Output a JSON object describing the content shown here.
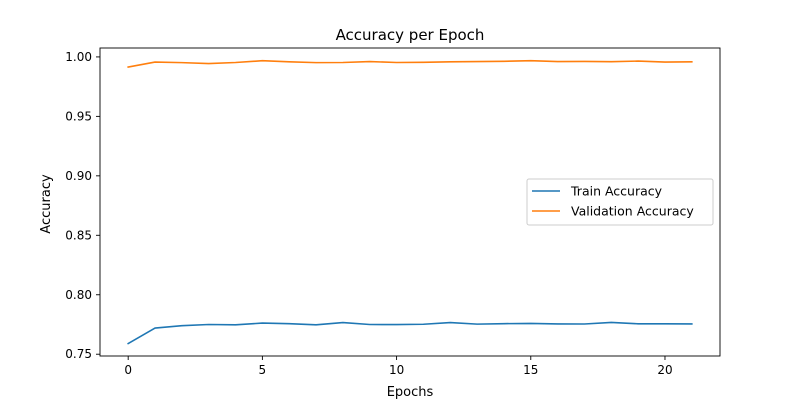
{
  "chart_data": {
    "type": "line",
    "title": "Accuracy per Epoch",
    "xlabel": "Epochs",
    "ylabel": "Accuracy",
    "xlim": [
      -1.05,
      22.05
    ],
    "ylim": [
      0.7485,
      1.0075
    ],
    "xticks": [
      0,
      5,
      10,
      15,
      20
    ],
    "xtick_labels": [
      "0",
      "5",
      "10",
      "15",
      "20"
    ],
    "yticks": [
      0.75,
      0.8,
      0.85,
      0.9,
      0.95,
      1.0
    ],
    "ytick_labels": [
      "0.75",
      "0.80",
      "0.85",
      "0.90",
      "0.95",
      "1.00"
    ],
    "grid": false,
    "legend_position": "center-right",
    "x": [
      0,
      1,
      2,
      3,
      4,
      5,
      6,
      7,
      8,
      9,
      10,
      11,
      12,
      13,
      14,
      15,
      16,
      17,
      18,
      19,
      20,
      21
    ],
    "series": [
      {
        "name": "Train Accuracy",
        "color": "#1f77b4",
        "values": [
          0.759,
          0.772,
          0.774,
          0.775,
          0.7747,
          0.7762,
          0.7757,
          0.7747,
          0.7766,
          0.775,
          0.7749,
          0.7752,
          0.7766,
          0.7753,
          0.7757,
          0.7759,
          0.7755,
          0.7754,
          0.7767,
          0.7756,
          0.7756,
          0.7755
        ]
      },
      {
        "name": "Validation Accuracy",
        "color": "#ff7f0e",
        "values": [
          0.9915,
          0.9957,
          0.9952,
          0.9944,
          0.9953,
          0.9968,
          0.9959,
          0.9952,
          0.9953,
          0.9961,
          0.9953,
          0.9955,
          0.9959,
          0.9961,
          0.9963,
          0.9968,
          0.9961,
          0.9962,
          0.996,
          0.9965,
          0.9957,
          0.9959
        ]
      }
    ]
  }
}
